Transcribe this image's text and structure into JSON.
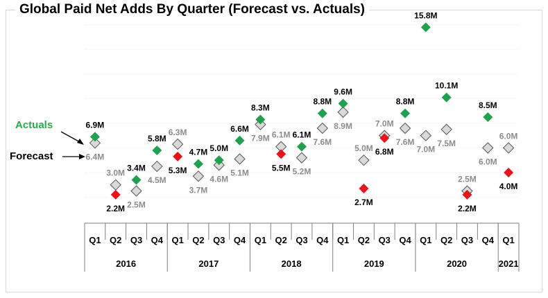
{
  "title": "Global Paid Net Adds By Quarter (Forecast vs. Actuals)",
  "legend": {
    "actuals": "Actuals",
    "forecast": "Forecast"
  },
  "colors": {
    "actual_beat": "#21a150",
    "actual_miss": "#e8141c",
    "forecast_fill": "#d9d9d9",
    "forecast_stroke": "#555555",
    "forecast_label": "#8c8c8c",
    "actual_label": "#000000"
  },
  "chart_data": {
    "type": "scatter",
    "title": "Global Paid Net Adds By Quarter (Forecast vs. Actuals)",
    "quarters": [
      "Q1",
      "Q2",
      "Q3",
      "Q4",
      "Q1",
      "Q2",
      "Q3",
      "Q4",
      "Q1",
      "Q2",
      "Q3",
      "Q4",
      "Q1",
      "Q2",
      "Q3",
      "Q4",
      "Q1",
      "Q2",
      "Q3",
      "Q4",
      "Q1"
    ],
    "years": [
      {
        "label": "2016",
        "count": 4
      },
      {
        "label": "2017",
        "count": 4
      },
      {
        "label": "2018",
        "count": 4
      },
      {
        "label": "2019",
        "count": 4
      },
      {
        "label": "2020",
        "count": 4
      },
      {
        "label": "2021",
        "count": 1
      }
    ],
    "series": [
      {
        "name": "Actuals",
        "values": [
          6.9,
          2.2,
          3.4,
          5.8,
          5.3,
          4.7,
          5.0,
          6.6,
          8.3,
          5.5,
          6.1,
          8.8,
          9.6,
          2.7,
          6.8,
          8.8,
          15.8,
          10.1,
          2.2,
          8.5,
          4.0
        ],
        "labels": [
          "6.9M",
          "2.2M",
          "3.4M",
          "5.8M",
          "5.3M",
          "4.7M",
          "5.0M",
          "6.6M",
          "8.3M",
          "5.5M",
          "6.1M",
          "8.8M",
          "9.6M",
          "2.7M",
          "6.8M",
          "8.8M",
          "15.8M",
          "10.1M",
          "2.2M",
          "8.5M",
          "4.0M"
        ]
      },
      {
        "name": "Forecast",
        "values": [
          6.4,
          3.0,
          2.5,
          4.5,
          6.3,
          3.7,
          4.6,
          5.1,
          7.9,
          6.1,
          5.2,
          7.6,
          8.9,
          5.0,
          7.0,
          7.6,
          7.0,
          7.5,
          2.5,
          6.0,
          6.0
        ],
        "labels": [
          "6.4M",
          "3.0M",
          "2.5M",
          "4.5M",
          "6.3M",
          "3.7M",
          "4.6M",
          "5.1M",
          "7.9M",
          "6.1M",
          "5.2M",
          "7.6M",
          "8.9M",
          "5.0M",
          "7.0M",
          "7.6M",
          "7.0M",
          "7.5M",
          "2.5M",
          "6.0M",
          "6.0M"
        ]
      }
    ],
    "ylim": [
      0,
      17
    ],
    "grid": true
  }
}
